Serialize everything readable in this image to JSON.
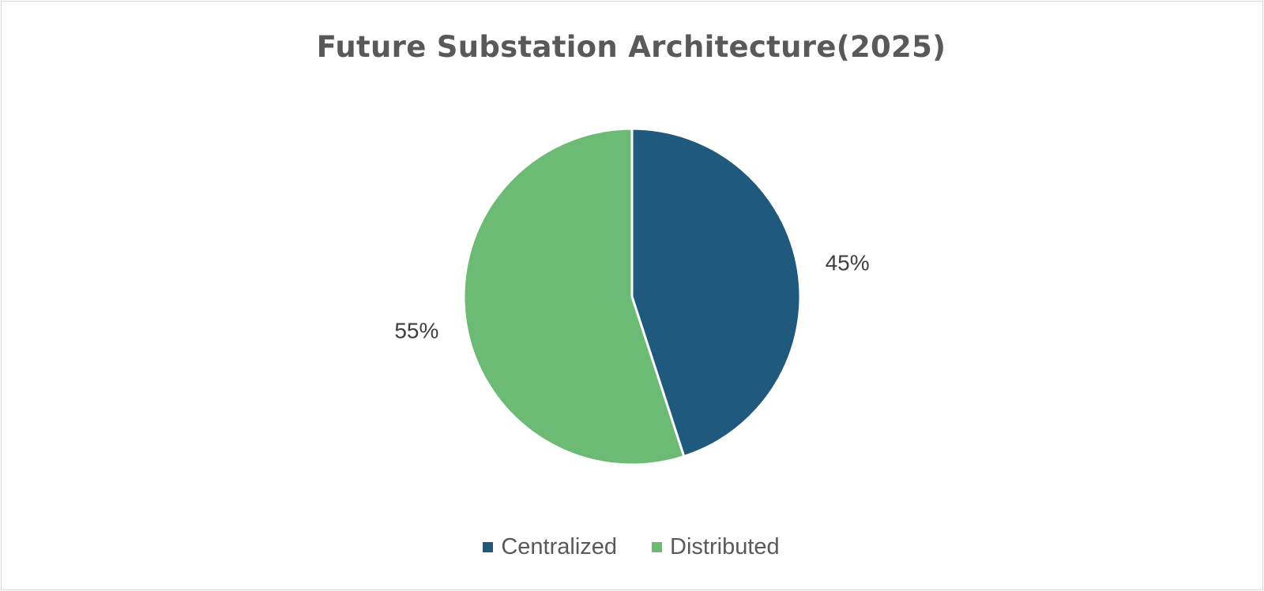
{
  "chart_data": {
    "type": "pie",
    "title": "Future Substation Architecture(2025)",
    "categories": [
      "Centralized",
      "Distributed"
    ],
    "values": [
      45,
      55
    ],
    "data_labels": [
      "45%",
      "55%"
    ],
    "colors": [
      "#1f5a7e",
      "#6bbb74"
    ],
    "legend_position": "bottom",
    "start_angle": "12 o'clock",
    "direction": "clockwise"
  }
}
